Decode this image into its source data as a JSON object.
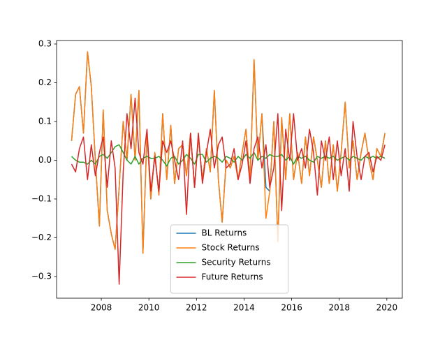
{
  "chart_data": {
    "type": "line",
    "x": [
      2006.75,
      2006.92,
      2007.08,
      2007.25,
      2007.42,
      2007.58,
      2007.75,
      2007.92,
      2008.08,
      2008.25,
      2008.42,
      2008.58,
      2008.75,
      2008.92,
      2009.08,
      2009.25,
      2009.42,
      2009.58,
      2009.75,
      2009.92,
      2010.08,
      2010.25,
      2010.42,
      2010.58,
      2010.75,
      2010.92,
      2011.08,
      2011.25,
      2011.42,
      2011.58,
      2011.75,
      2011.92,
      2012.08,
      2012.25,
      2012.42,
      2012.58,
      2012.75,
      2012.92,
      2013.08,
      2013.25,
      2013.42,
      2013.58,
      2013.75,
      2013.92,
      2014.08,
      2014.25,
      2014.42,
      2014.58,
      2014.75,
      2014.92,
      2015.08,
      2015.25,
      2015.42,
      2015.58,
      2015.75,
      2015.92,
      2016.08,
      2016.25,
      2016.42,
      2016.58,
      2016.75,
      2016.92,
      2017.08,
      2017.25,
      2017.42,
      2017.58,
      2017.75,
      2017.92,
      2018.08,
      2018.25,
      2018.42,
      2018.58,
      2018.75,
      2018.92,
      2019.08,
      2019.25,
      2019.42,
      2019.58,
      2019.75,
      2019.92
    ],
    "series": [
      {
        "name": "BL Returns",
        "color": "#1f77b4",
        "values": [
          0.05,
          0.17,
          0.19,
          0.07,
          0.28,
          0.19,
          0.0,
          -0.17,
          0.13,
          -0.13,
          -0.19,
          -0.23,
          -0.07,
          0.1,
          0.0,
          0.17,
          0.0,
          0.18,
          -0.24,
          0.07,
          -0.1,
          0.02,
          -0.09,
          0.12,
          -0.05,
          0.09,
          -0.06,
          0.03,
          0.04,
          -0.04,
          0.07,
          -0.07,
          0.06,
          -0.05,
          0.03,
          -0.03,
          0.18,
          -0.05,
          -0.16,
          0.0,
          -0.02,
          0.01,
          -0.05,
          0.02,
          0.08,
          -0.05,
          0.26,
          0.0,
          0.12,
          -0.07,
          -0.08,
          0.1,
          -0.21,
          0.11,
          -0.05,
          0.12,
          -0.05,
          0.02,
          -0.06,
          0.06,
          -0.04,
          0.06,
          0.0,
          -0.07,
          0.05,
          -0.06,
          0.04,
          -0.08,
          0.02,
          0.15,
          -0.02,
          0.05,
          -0.05,
          0.02,
          0.07,
          0.0,
          -0.05,
          0.03,
          0.01,
          0.07
        ]
      },
      {
        "name": "Stock Returns",
        "color": "#ff7f0e",
        "values": [
          0.05,
          0.17,
          0.19,
          0.07,
          0.28,
          0.19,
          0.0,
          -0.17,
          0.13,
          -0.13,
          -0.19,
          -0.23,
          -0.07,
          0.1,
          0.0,
          0.17,
          0.0,
          0.18,
          -0.24,
          0.07,
          -0.1,
          0.02,
          -0.09,
          0.12,
          -0.05,
          0.09,
          -0.06,
          0.03,
          0.04,
          -0.04,
          0.07,
          -0.07,
          0.06,
          -0.05,
          0.03,
          -0.03,
          0.18,
          -0.05,
          -0.16,
          0.0,
          -0.02,
          0.01,
          -0.05,
          0.02,
          0.08,
          -0.05,
          0.26,
          0.0,
          0.12,
          -0.15,
          -0.08,
          0.1,
          -0.21,
          0.11,
          -0.05,
          0.12,
          -0.05,
          0.02,
          -0.06,
          0.06,
          -0.04,
          0.06,
          0.0,
          -0.07,
          0.05,
          -0.06,
          0.04,
          -0.08,
          0.02,
          0.15,
          -0.02,
          0.05,
          -0.05,
          0.02,
          0.07,
          0.0,
          -0.05,
          0.03,
          0.01,
          0.07
        ]
      },
      {
        "name": "Security Returns",
        "color": "#2ca02c",
        "values": [
          0.01,
          0.0,
          -0.005,
          -0.005,
          -0.01,
          0.0,
          -0.01,
          0.01,
          0.015,
          0.005,
          0.02,
          0.035,
          0.04,
          0.02,
          0.0,
          -0.01,
          0.01,
          -0.01,
          0.005,
          0.01,
          0.005,
          0.005,
          0.01,
          0.0,
          -0.015,
          0.005,
          0.01,
          -0.01,
          0.0,
          0.015,
          0.005,
          -0.01,
          0.015,
          0.015,
          -0.005,
          0.005,
          0.01,
          0.005,
          -0.005,
          0.01,
          0.005,
          -0.005,
          0.01,
          0.0,
          0.015,
          0.005,
          0.02,
          0.0,
          0.01,
          0.005,
          0.015,
          0.01,
          0.01,
          0.015,
          0.0,
          0.01,
          -0.01,
          0.01,
          0.005,
          0.01,
          0.0,
          -0.005,
          0.01,
          0.005,
          0.01,
          0.005,
          0.01,
          0.0,
          0.005,
          0.01,
          0.0,
          0.01,
          0.005,
          0.0,
          0.01,
          0.005,
          0.01,
          0.005,
          0.01,
          0.005
        ]
      },
      {
        "name": "Future Returns",
        "color": "#d62728",
        "values": [
          -0.01,
          -0.03,
          0.03,
          0.06,
          -0.05,
          0.04,
          -0.04,
          0.02,
          0.06,
          -0.07,
          0.05,
          -0.02,
          -0.32,
          -0.03,
          0.12,
          0.03,
          0.16,
          0.02,
          -0.01,
          0.08,
          -0.08,
          0.01,
          -0.08,
          0.05,
          0.02,
          0.05,
          0.0,
          -0.05,
          0.05,
          -0.14,
          0.07,
          -0.07,
          0.07,
          -0.06,
          0.02,
          0.08,
          -0.02,
          0.04,
          0.06,
          -0.02,
          -0.01,
          0.03,
          -0.05,
          -0.01,
          0.05,
          -0.06,
          0.03,
          0.06,
          -0.02,
          0.04,
          -0.07,
          -0.02,
          0.12,
          -0.13,
          0.08,
          0.0,
          0.12,
          0.0,
          0.03,
          -0.02,
          0.08,
          0.02,
          -0.09,
          0.05,
          0.0,
          0.06,
          -0.05,
          0.05,
          -0.04,
          0.03,
          -0.08,
          0.1,
          0.01,
          -0.05,
          0.01,
          0.02,
          -0.03,
          0.01,
          0.0,
          0.04
        ]
      }
    ],
    "xlim": [
      2006.12,
      2020.65
    ],
    "xticks": [
      2008,
      2010,
      2012,
      2014,
      2016,
      2018,
      2020
    ],
    "ylim": [
      -0.356,
      0.309
    ],
    "yticks": [
      {
        "value": -0.3,
        "label": "−0.3"
      },
      {
        "value": -0.2,
        "label": "−0.2"
      },
      {
        "value": -0.1,
        "label": "−0.1"
      },
      {
        "value": 0.0,
        "label": "0.0"
      },
      {
        "value": 0.1,
        "label": "0.1"
      },
      {
        "value": 0.2,
        "label": "0.2"
      },
      {
        "value": 0.3,
        "label": "0.3"
      }
    ],
    "legend": "lower center"
  }
}
